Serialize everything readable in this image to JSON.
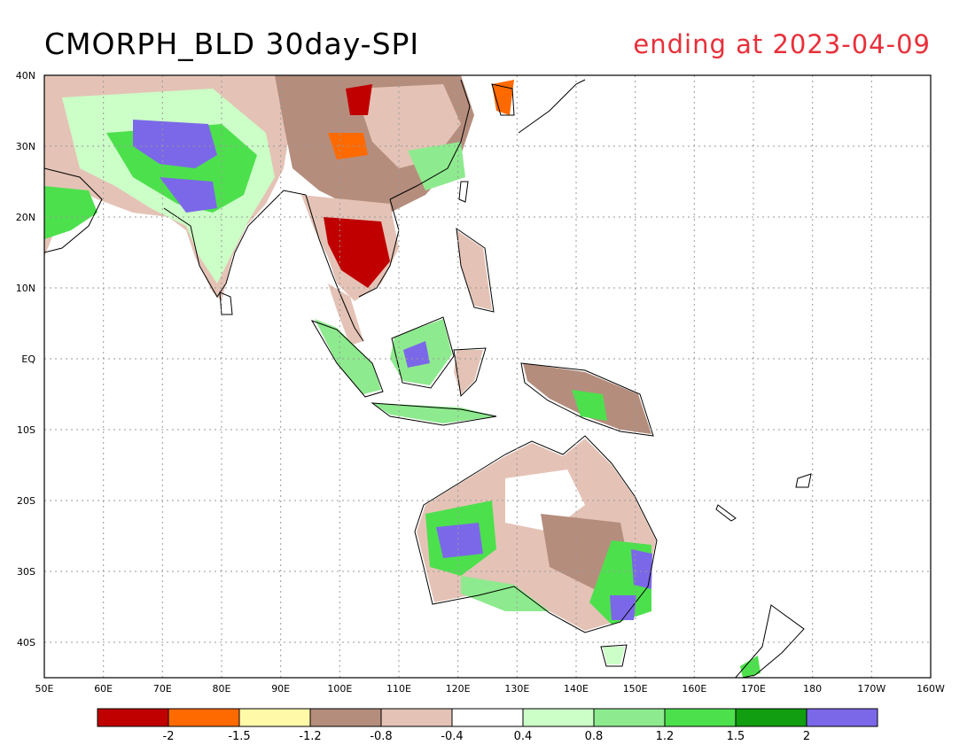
{
  "title": "CMORPH_BLD 30day-SPI",
  "subtitle": "ending at 2023-04-09",
  "lat_labels": [
    "40N",
    "30N",
    "20N",
    "10N",
    "EQ",
    "10S",
    "20S",
    "30S",
    "40S"
  ],
  "lon_labels": [
    "50E",
    "60E",
    "70E",
    "80E",
    "90E",
    "100E",
    "110E",
    "120E",
    "130E",
    "140E",
    "150E",
    "160E",
    "170E",
    "180",
    "170W",
    "160W"
  ],
  "colorbar": {
    "colors": [
      "#c00000",
      "#ff6a00",
      "#fff9a8",
      "#b58d7d",
      "#e4c3b6",
      "#ffffff",
      "#ccffc7",
      "#8eea8e",
      "#4de04d",
      "#119e11",
      "#7b68e8"
    ],
    "labels": [
      "-2",
      "-1.5",
      "-1.2",
      "-0.8",
      "-0.4",
      "0.4",
      "0.8",
      "1.2",
      "1.5",
      "2"
    ]
  },
  "colors": {
    "land_outline": "#000000",
    "grid": "#999999",
    "subtitle": "#e8303a"
  }
}
